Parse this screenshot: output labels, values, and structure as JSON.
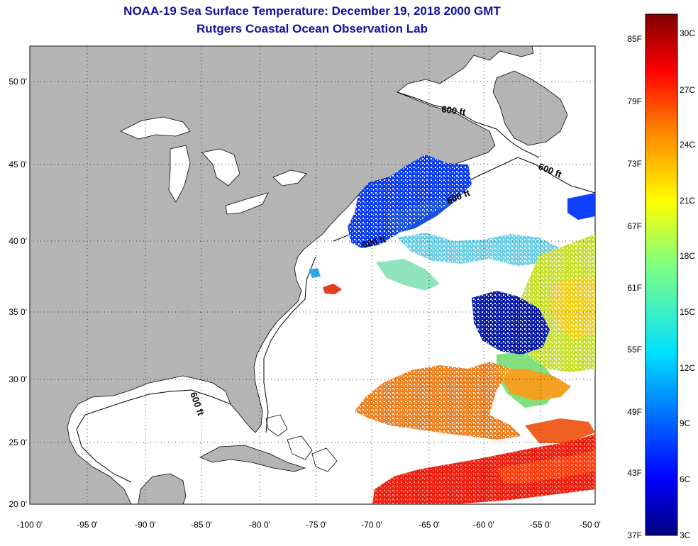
{
  "title": "NOAA-19 Sea Surface Temperature:  December 19, 2018 2000 GMT",
  "subtitle": "Rutgers Coastal Ocean Observation Lab",
  "lon_ticks": [
    "-100 0'",
    "-95 0'",
    "-90 0'",
    "-85 0'",
    "-80 0'",
    "-75 0'",
    "-70 0'",
    "-65 0'",
    "-60 0'",
    "-55 0'",
    "-50 0'"
  ],
  "lat_ticks": [
    "20 0'",
    "25 0'",
    "30 0'",
    "35 0'",
    "40 0'",
    "45 0'",
    "50 0'"
  ],
  "depth_contour_label": "600 ft",
  "colorbar": {
    "fahrenheit": [
      "85F",
      "79F",
      "73F",
      "67F",
      "61F",
      "55F",
      "49F",
      "43F",
      "37F"
    ],
    "celsius": [
      "30C",
      "27C",
      "24C",
      "21C",
      "18C",
      "15C",
      "12C",
      "9C",
      "6C",
      "3C"
    ]
  },
  "colors": {
    "title": "#1010a0",
    "land": "#b4b4b4",
    "ocean": "#ffffff"
  }
}
